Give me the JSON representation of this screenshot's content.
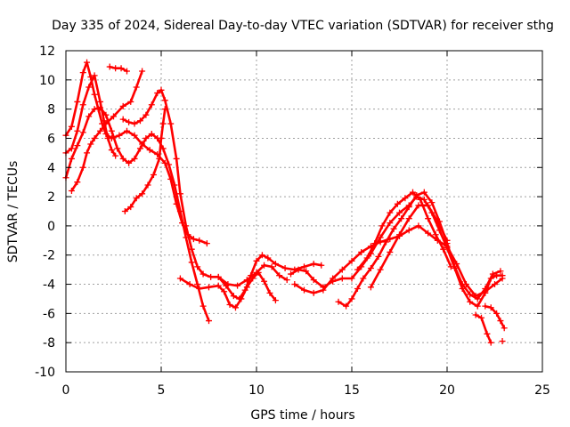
{
  "chart_data": {
    "type": "scatter",
    "title": "Day 335 of 2024, Sidereal Day-to-day VTEC variation (SDTVAR) for receiver sthg",
    "xlabel": "GPS time / hours",
    "ylabel": "SDTVAR / TECUs",
    "xlim": [
      0,
      25
    ],
    "ylim": [
      -10,
      12
    ],
    "x_ticks": [
      0,
      5,
      10,
      15,
      20,
      25
    ],
    "y_ticks": [
      -10,
      -8,
      -6,
      -4,
      -2,
      0,
      2,
      4,
      6,
      8,
      10,
      12
    ],
    "grid": true,
    "marker": "+",
    "color": "#ff0000",
    "series": [
      {
        "name": "track-1",
        "points": [
          [
            0.0,
            6.2
          ],
          [
            0.3,
            6.8
          ],
          [
            0.6,
            8.5
          ],
          [
            0.9,
            10.5
          ],
          [
            1.1,
            11.2
          ],
          [
            1.3,
            10.2
          ],
          [
            1.5,
            9.0
          ],
          [
            1.7,
            8.0
          ],
          [
            1.9,
            7.0
          ],
          [
            2.1,
            6.3
          ],
          [
            2.4,
            6.0
          ],
          [
            2.8,
            6.2
          ],
          [
            3.2,
            6.5
          ],
          [
            3.6,
            6.2
          ],
          [
            4.0,
            5.6
          ],
          [
            4.4,
            5.2
          ],
          [
            4.8,
            4.9
          ],
          [
            5.2,
            4.3
          ],
          [
            5.5,
            3.2
          ],
          [
            5.8,
            1.5
          ],
          [
            6.1,
            0.2
          ],
          [
            6.4,
            -0.6
          ],
          [
            6.7,
            -0.9
          ],
          [
            7.0,
            -1.0
          ],
          [
            7.4,
            -1.2
          ]
        ]
      },
      {
        "name": "track-2",
        "points": [
          [
            0.0,
            5.0
          ],
          [
            0.3,
            5.3
          ],
          [
            0.6,
            6.5
          ],
          [
            0.9,
            8.3
          ],
          [
            1.2,
            9.5
          ],
          [
            1.5,
            10.3
          ],
          [
            1.8,
            8.5
          ],
          [
            2.0,
            7.2
          ],
          [
            2.2,
            6.0
          ],
          [
            2.4,
            5.2
          ],
          [
            2.6,
            4.8
          ]
        ]
      },
      {
        "name": "track-3",
        "points": [
          [
            0.0,
            3.3
          ],
          [
            0.3,
            4.6
          ],
          [
            0.6,
            5.5
          ],
          [
            0.9,
            6.4
          ],
          [
            1.2,
            7.5
          ],
          [
            1.5,
            8.0
          ],
          [
            1.8,
            8.1
          ],
          [
            2.1,
            7.6
          ],
          [
            2.4,
            6.5
          ],
          [
            2.7,
            5.3
          ],
          [
            3.0,
            4.6
          ],
          [
            3.3,
            4.3
          ],
          [
            3.6,
            4.6
          ],
          [
            3.9,
            5.3
          ],
          [
            4.2,
            6.0
          ],
          [
            4.5,
            6.3
          ],
          [
            4.8,
            6.0
          ],
          [
            5.1,
            5.3
          ],
          [
            5.4,
            4.2
          ],
          [
            5.7,
            2.8
          ],
          [
            6.0,
            1.0
          ],
          [
            6.3,
            -0.8
          ],
          [
            6.6,
            -2.5
          ],
          [
            6.9,
            -4.0
          ],
          [
            7.2,
            -5.5
          ],
          [
            7.5,
            -6.5
          ]
        ]
      },
      {
        "name": "track-4",
        "points": [
          [
            0.3,
            2.4
          ],
          [
            0.6,
            3.0
          ],
          [
            0.9,
            4.0
          ],
          [
            1.1,
            5.0
          ],
          [
            1.3,
            5.6
          ],
          [
            1.5,
            6.0
          ],
          [
            1.8,
            6.5
          ],
          [
            2.1,
            7.0
          ],
          [
            2.5,
            7.5
          ],
          [
            3.0,
            8.2
          ],
          [
            3.4,
            8.5
          ],
          [
            3.7,
            9.5
          ],
          [
            4.0,
            10.6
          ]
        ]
      },
      {
        "name": "track-5",
        "points": [
          [
            2.3,
            10.9
          ],
          [
            2.6,
            10.8
          ],
          [
            2.9,
            10.8
          ],
          [
            3.2,
            10.6
          ]
        ]
      },
      {
        "name": "track-6",
        "points": [
          [
            3.1,
            1.0
          ],
          [
            3.4,
            1.3
          ],
          [
            3.7,
            1.9
          ],
          [
            4.0,
            2.2
          ],
          [
            4.3,
            2.8
          ],
          [
            4.6,
            3.5
          ],
          [
            4.9,
            4.6
          ],
          [
            5.0,
            6.0
          ],
          [
            5.1,
            7.0
          ],
          [
            5.2,
            8.0
          ]
        ]
      },
      {
        "name": "track-7",
        "points": [
          [
            3.0,
            7.3
          ],
          [
            3.3,
            7.1
          ],
          [
            3.6,
            7.0
          ],
          [
            3.9,
            7.2
          ],
          [
            4.2,
            7.6
          ],
          [
            4.5,
            8.3
          ],
          [
            4.8,
            9.1
          ],
          [
            5.0,
            9.3
          ],
          [
            5.2,
            8.6
          ],
          [
            5.5,
            7.0
          ],
          [
            5.8,
            4.6
          ],
          [
            6.0,
            2.2
          ],
          [
            6.3,
            0.0
          ],
          [
            6.6,
            -1.6
          ],
          [
            6.9,
            -2.8
          ],
          [
            7.2,
            -3.3
          ],
          [
            7.6,
            -3.5
          ],
          [
            8.0,
            -3.5
          ],
          [
            8.4,
            -4.1
          ],
          [
            8.8,
            -4.8
          ],
          [
            9.1,
            -5.0
          ],
          [
            9.4,
            -4.4
          ],
          [
            9.7,
            -3.4
          ],
          [
            10.0,
            -2.4
          ],
          [
            10.3,
            -2.0
          ],
          [
            10.6,
            -2.2
          ],
          [
            11.0,
            -2.6
          ],
          [
            11.5,
            -2.9
          ],
          [
            12.0,
            -3.0
          ],
          [
            12.5,
            -2.8
          ],
          [
            13.0,
            -2.6
          ],
          [
            13.4,
            -2.7
          ]
        ]
      },
      {
        "name": "track-8",
        "points": [
          [
            6.0,
            -3.6
          ],
          [
            6.5,
            -4.0
          ],
          [
            7.0,
            -4.3
          ],
          [
            7.5,
            -4.2
          ],
          [
            8.0,
            -4.1
          ],
          [
            8.3,
            -4.5
          ],
          [
            8.6,
            -5.4
          ],
          [
            8.9,
            -5.6
          ],
          [
            9.2,
            -5.0
          ],
          [
            9.5,
            -4.2
          ],
          [
            9.8,
            -3.6
          ],
          [
            10.1,
            -3.2
          ],
          [
            10.4,
            -3.8
          ],
          [
            10.7,
            -4.6
          ],
          [
            11.0,
            -5.1
          ]
        ]
      },
      {
        "name": "track-9",
        "points": [
          [
            8.0,
            -3.5
          ],
          [
            8.5,
            -4.0
          ],
          [
            9.0,
            -4.1
          ],
          [
            9.5,
            -3.7
          ],
          [
            10.0,
            -3.2
          ],
          [
            10.4,
            -2.7
          ],
          [
            10.8,
            -2.8
          ],
          [
            11.2,
            -3.4
          ],
          [
            11.6,
            -3.7
          ]
        ]
      },
      {
        "name": "track-10",
        "points": [
          [
            11.8,
            -3.3
          ],
          [
            12.2,
            -3.0
          ],
          [
            12.6,
            -3.1
          ],
          [
            13.0,
            -3.7
          ],
          [
            13.5,
            -4.2
          ],
          [
            14.0,
            -3.8
          ],
          [
            14.5,
            -3.6
          ],
          [
            15.0,
            -3.6
          ],
          [
            15.5,
            -2.8
          ],
          [
            16.0,
            -1.9
          ],
          [
            16.5,
            -0.8
          ],
          [
            17.0,
            0.2
          ],
          [
            17.5,
            0.9
          ],
          [
            18.0,
            1.4
          ],
          [
            18.4,
            2.0
          ],
          [
            18.8,
            1.8
          ],
          [
            19.2,
            0.9
          ],
          [
            19.6,
            -0.3
          ],
          [
            20.0,
            -1.5
          ],
          [
            20.4,
            -2.9
          ],
          [
            20.8,
            -4.3
          ],
          [
            21.2,
            -5.2
          ],
          [
            21.6,
            -5.5
          ],
          [
            22.0,
            -4.6
          ],
          [
            22.3,
            -3.6
          ],
          [
            22.6,
            -3.4
          ],
          [
            22.9,
            -3.4
          ]
        ]
      },
      {
        "name": "track-11",
        "points": [
          [
            12.0,
            -4.0
          ],
          [
            12.5,
            -4.4
          ],
          [
            13.0,
            -4.6
          ],
          [
            13.5,
            -4.4
          ],
          [
            14.0,
            -3.6
          ],
          [
            14.5,
            -3.0
          ],
          [
            15.0,
            -2.4
          ],
          [
            15.5,
            -1.8
          ],
          [
            16.0,
            -1.4
          ],
          [
            16.5,
            -1.1
          ],
          [
            17.0,
            -0.9
          ],
          [
            17.5,
            -0.7
          ],
          [
            18.0,
            -0.3
          ],
          [
            18.5,
            0.0
          ],
          [
            19.0,
            -0.5
          ],
          [
            19.5,
            -1.0
          ],
          [
            20.0,
            -1.4
          ],
          [
            20.5,
            -2.6
          ],
          [
            21.0,
            -4.0
          ],
          [
            21.5,
            -4.8
          ],
          [
            22.0,
            -4.5
          ],
          [
            22.5,
            -4.0
          ],
          [
            22.9,
            -3.6
          ]
        ]
      },
      {
        "name": "track-12",
        "points": [
          [
            14.3,
            -5.2
          ],
          [
            14.7,
            -5.5
          ],
          [
            15.0,
            -5.0
          ],
          [
            15.3,
            -4.3
          ],
          [
            15.6,
            -3.6
          ],
          [
            16.0,
            -2.9
          ],
          [
            16.4,
            -2.1
          ],
          [
            16.8,
            -1.1
          ],
          [
            17.2,
            -0.2
          ],
          [
            17.6,
            0.5
          ],
          [
            18.0,
            1.3
          ],
          [
            18.4,
            2.1
          ],
          [
            18.8,
            2.3
          ],
          [
            19.2,
            1.6
          ],
          [
            19.6,
            0.3
          ],
          [
            20.0,
            -1.2
          ],
          [
            20.4,
            -2.8
          ],
          [
            20.8,
            -4.0
          ],
          [
            21.2,
            -4.7
          ],
          [
            21.6,
            -5.0
          ],
          [
            22.0,
            -4.3
          ],
          [
            22.4,
            -3.3
          ],
          [
            22.8,
            -3.1
          ]
        ]
      },
      {
        "name": "track-13",
        "points": [
          [
            15.3,
            -3.0
          ],
          [
            15.8,
            -2.2
          ],
          [
            16.2,
            -1.2
          ],
          [
            16.6,
            0.0
          ],
          [
            17.0,
            0.9
          ],
          [
            17.4,
            1.5
          ],
          [
            17.8,
            1.9
          ],
          [
            18.2,
            2.3
          ],
          [
            18.6,
            1.8
          ],
          [
            19.0,
            0.5
          ],
          [
            19.4,
            -0.6
          ],
          [
            19.8,
            -1.6
          ],
          [
            20.2,
            -2.8
          ]
        ]
      },
      {
        "name": "track-14",
        "points": [
          [
            16.0,
            -4.2
          ],
          [
            16.5,
            -3.0
          ],
          [
            17.0,
            -1.8
          ],
          [
            17.5,
            -0.6
          ],
          [
            18.0,
            0.5
          ],
          [
            18.5,
            1.4
          ],
          [
            19.0,
            1.4
          ],
          [
            19.5,
            0.3
          ],
          [
            20.0,
            -1.0
          ]
        ]
      },
      {
        "name": "track-15",
        "points": [
          [
            21.5,
            -6.1
          ],
          [
            21.8,
            -6.3
          ],
          [
            22.1,
            -7.4
          ],
          [
            22.3,
            -8.0
          ]
        ]
      },
      {
        "name": "track-16",
        "points": [
          [
            22.0,
            -5.5
          ],
          [
            22.3,
            -5.6
          ],
          [
            22.6,
            -6.0
          ],
          [
            22.8,
            -6.5
          ],
          [
            23.0,
            -7.0
          ]
        ]
      }
    ],
    "isolated_points": [
      [
        22.9,
        -7.9
      ]
    ]
  }
}
